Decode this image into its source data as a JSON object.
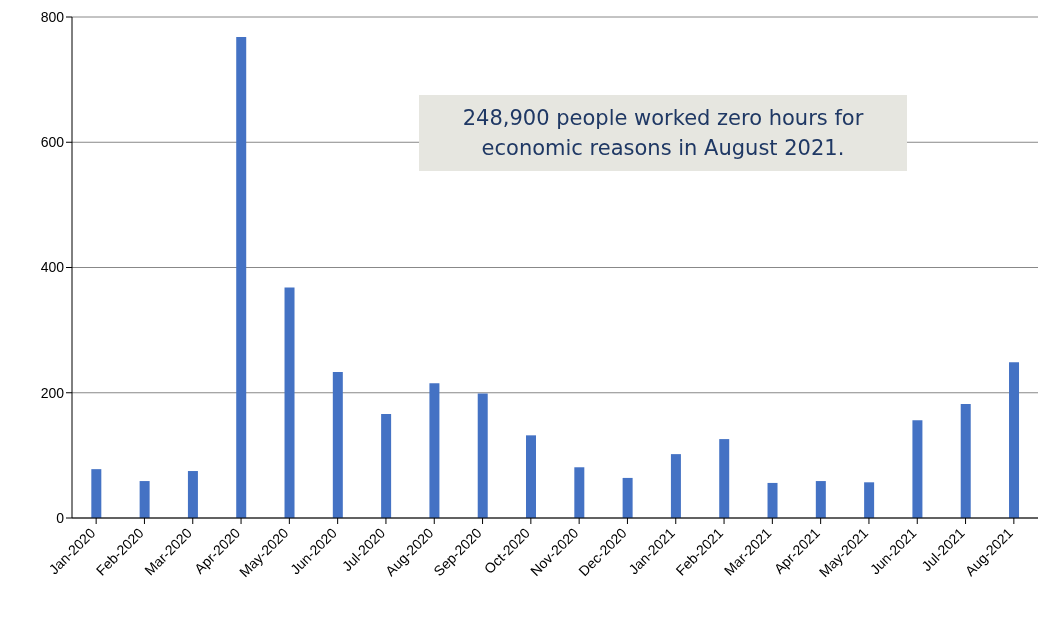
{
  "chart_data": {
    "type": "bar",
    "categories": [
      "Jan-2020",
      "Feb-2020",
      "Mar-2020",
      "Apr-2020",
      "May-2020",
      "Jun-2020",
      "Jul-2020",
      "Aug-2020",
      "Sep-2020",
      "Oct-2020",
      "Nov-2020",
      "Dec-2020",
      "Jan-2021",
      "Feb-2021",
      "Mar-2021",
      "Apr-2021",
      "May-2021",
      "Jun-2021",
      "Jul-2021",
      "Aug-2021"
    ],
    "values": [
      78,
      59,
      75,
      768,
      368,
      233,
      166,
      215,
      199,
      132,
      81,
      64,
      102,
      126,
      56,
      59,
      57,
      156,
      182,
      248.9
    ],
    "color": "#4472c4",
    "ylim": [
      0,
      800
    ],
    "yticks": [
      0,
      200,
      400,
      600,
      800
    ],
    "grid": "y",
    "annotations": [
      "248,900 people worked zero hours for economic reasons in August 2021."
    ]
  }
}
